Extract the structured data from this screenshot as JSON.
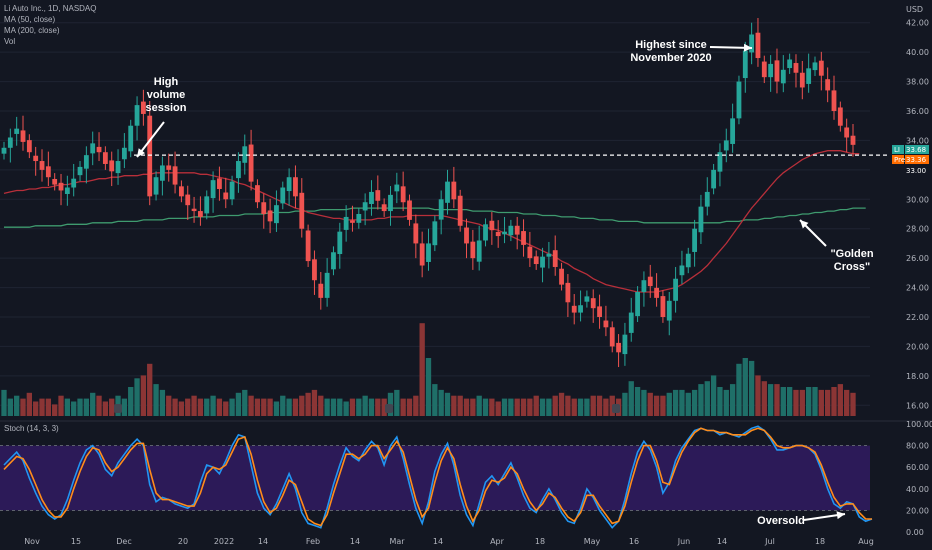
{
  "legend": {
    "symbol_line": "Li Auto Inc., 1D, NASDAQ",
    "ma50": "MA (50, close)",
    "ma200": "MA (200, close)",
    "vol": "Vol"
  },
  "oscillator_label": "Stoch (14, 3, 3)",
  "currency": "USD",
  "annotations": {
    "high_volume": "High volume session",
    "highest_since": "Highest since November 2020",
    "golden_cross": "\"Golden Cross\"",
    "oversold": "Oversold"
  },
  "price_tags": {
    "last_label": "LI",
    "last_value": "33.68",
    "pre_label": "Pre",
    "pre_value": "33.36",
    "line_value": "33.00"
  },
  "colors": {
    "bg": "#131722",
    "up": "#26a69a",
    "down": "#ef5350",
    "vol_up": "#1f6f68",
    "vol_down": "#8b3535",
    "ma50": "#b82f3a",
    "ma200": "#3f9b6f",
    "k_line": "#2196f3",
    "d_line": "#ff8c1a",
    "osc_band": "#311b62",
    "grid": "#1f2433"
  },
  "chart_data": {
    "type": "candlestick",
    "price_axis": {
      "ylim": [
        15,
        43
      ],
      "ticks": [
        16,
        18,
        20,
        22,
        24,
        26,
        28,
        30,
        32,
        34,
        36,
        38,
        40,
        42
      ]
    },
    "osc_axis": {
      "ylim": [
        0,
        100
      ],
      "ticks": [
        0,
        20,
        40,
        60,
        80,
        100
      ],
      "band": [
        20,
        80
      ]
    },
    "x_labels": [
      "Nov",
      "15",
      "Dec",
      "20",
      "2022",
      "14",
      "Feb",
      "14",
      "Mar",
      "14",
      "Apr",
      "18",
      "May",
      "16",
      "Jun",
      "14",
      "Jul",
      "18",
      "Aug"
    ],
    "horizontal_level": 33.0,
    "closes": [
      33.5,
      34.2,
      34.8,
      33.9,
      33.2,
      32.6,
      32.0,
      31.5,
      31.0,
      30.6,
      30.8,
      31.4,
      32.2,
      33.0,
      33.8,
      33.2,
      32.4,
      31.9,
      32.6,
      33.5,
      35.0,
      36.4,
      35.8,
      30.2,
      31.5,
      32.3,
      32.0,
      31.0,
      30.2,
      29.6,
      29.2,
      28.8,
      30.2,
      31.3,
      30.7,
      30.0,
      31.2,
      32.6,
      33.6,
      31.2,
      29.8,
      29.0,
      28.5,
      29.6,
      30.8,
      31.5,
      30.2,
      28.0,
      25.8,
      24.5,
      23.3,
      25.0,
      26.4,
      27.8,
      28.8,
      28.4,
      29.0,
      29.8,
      30.5,
      29.9,
      29.2,
      30.3,
      31.0,
      29.8,
      28.6,
      27.0,
      25.5,
      27.0,
      28.5,
      30.0,
      31.2,
      30.0,
      28.2,
      27.0,
      26.0,
      27.2,
      28.3,
      27.9,
      27.5,
      27.8,
      28.2,
      27.6,
      26.9,
      26.0,
      25.6,
      26.1,
      26.3,
      25.4,
      24.2,
      23.0,
      22.3,
      22.8,
      23.4,
      22.6,
      22.0,
      21.3,
      20.0,
      19.6,
      20.8,
      22.3,
      23.7,
      24.5,
      24.1,
      23.3,
      22.0,
      23.1,
      24.6,
      25.5,
      26.3,
      28.0,
      29.5,
      30.5,
      32.0,
      33.2,
      34.0,
      35.5,
      38.0,
      40.1,
      41.2,
      39.6,
      38.3,
      39.2,
      38.0,
      38.8,
      39.5,
      38.6,
      37.6,
      38.9,
      39.3,
      38.4,
      37.4,
      36.0,
      35.0,
      34.2,
      33.7
    ],
    "ma50": [
      30.4,
      30.5,
      30.6,
      30.6,
      30.7,
      30.7,
      30.8,
      30.8,
      30.9,
      31.0,
      31.0,
      31.1,
      31.2,
      31.2,
      31.3,
      31.4,
      31.4,
      31.5,
      31.5,
      31.6,
      31.6,
      31.6,
      31.7,
      31.7,
      31.8,
      31.8,
      31.8,
      31.8,
      31.8,
      31.8,
      31.8,
      31.7,
      31.7,
      31.6,
      31.5,
      31.4,
      31.3,
      31.1,
      31.0,
      30.8,
      30.6,
      30.4,
      30.2,
      30.0,
      29.8,
      29.6,
      29.4,
      29.3,
      29.1,
      29.0,
      28.9,
      28.8,
      28.7,
      28.7,
      28.6,
      28.6,
      28.6,
      28.6,
      28.6,
      28.7,
      28.7,
      28.8,
      28.8,
      28.8,
      28.9,
      28.9,
      28.9,
      28.9,
      28.9,
      28.9,
      28.8,
      28.7,
      28.6,
      28.5,
      28.4,
      28.3,
      28.1,
      28.0,
      27.9,
      27.7,
      27.5,
      27.3,
      27.1,
      26.9,
      26.7,
      26.5,
      26.3,
      26.1,
      25.8,
      25.6,
      25.3,
      25.1,
      24.9,
      24.6,
      24.4,
      24.2,
      24.1,
      24.0,
      23.9,
      23.8,
      23.7,
      23.7,
      23.7,
      23.7,
      23.8,
      23.9,
      24.0,
      24.2,
      24.5,
      24.8,
      25.1,
      25.5,
      26.0,
      26.5,
      27.0,
      27.6,
      28.2,
      28.8,
      29.4,
      29.9,
      30.4,
      30.9,
      31.4,
      31.8,
      32.1,
      32.4,
      32.7,
      32.9,
      33.1,
      33.2,
      33.3,
      33.3,
      33.3,
      33.2,
      33.1,
      33.1
    ],
    "ma200": [
      28.1,
      28.1,
      28.1,
      28.1,
      28.1,
      28.2,
      28.2,
      28.2,
      28.2,
      28.2,
      28.3,
      28.3,
      28.3,
      28.3,
      28.4,
      28.4,
      28.4,
      28.4,
      28.5,
      28.5,
      28.5,
      28.5,
      28.6,
      28.6,
      28.6,
      28.6,
      28.7,
      28.7,
      28.7,
      28.7,
      28.8,
      28.8,
      28.8,
      28.8,
      28.9,
      28.9,
      28.9,
      28.9,
      29.0,
      29.0,
      29.0,
      29.0,
      29.1,
      29.1,
      29.1,
      29.1,
      29.2,
      29.2,
      29.2,
      29.2,
      29.3,
      29.3,
      29.3,
      29.3,
      29.3,
      29.4,
      29.4,
      29.4,
      29.4,
      29.4,
      29.4,
      29.4,
      29.4,
      29.4,
      29.4,
      29.4,
      29.4,
      29.4,
      29.3,
      29.3,
      29.3,
      29.3,
      29.3,
      29.3,
      29.2,
      29.2,
      29.2,
      29.2,
      29.1,
      29.1,
      29.1,
      29.1,
      29.0,
      29.0,
      29.0,
      28.9,
      28.9,
      28.9,
      28.8,
      28.8,
      28.8,
      28.7,
      28.7,
      28.7,
      28.6,
      28.6,
      28.6,
      28.5,
      28.5,
      28.5,
      28.5,
      28.4,
      28.4,
      28.4,
      28.4,
      28.4,
      28.4,
      28.4,
      28.4,
      28.4,
      28.4,
      28.4,
      28.4,
      28.4,
      28.5,
      28.5,
      28.5,
      28.6,
      28.6,
      28.6,
      28.7,
      28.7,
      28.8,
      28.8,
      28.9,
      28.9,
      29.0,
      29.0,
      29.1,
      29.1,
      29.2,
      29.2,
      29.3,
      29.3,
      29.4,
      29.4,
      29.4
    ],
    "volume_norm": [
      0.45,
      0.3,
      0.35,
      0.3,
      0.4,
      0.25,
      0.3,
      0.3,
      0.2,
      0.35,
      0.3,
      0.25,
      0.3,
      0.3,
      0.4,
      0.35,
      0.25,
      0.3,
      0.35,
      0.3,
      0.5,
      0.65,
      0.7,
      0.9,
      0.55,
      0.45,
      0.35,
      0.3,
      0.25,
      0.3,
      0.35,
      0.3,
      0.3,
      0.35,
      0.3,
      0.25,
      0.3,
      0.4,
      0.45,
      0.35,
      0.3,
      0.3,
      0.3,
      0.25,
      0.35,
      0.3,
      0.3,
      0.35,
      0.4,
      0.45,
      0.35,
      0.3,
      0.3,
      0.3,
      0.25,
      0.3,
      0.3,
      0.35,
      0.3,
      0.3,
      0.3,
      0.4,
      0.45,
      0.3,
      0.3,
      0.35,
      1.6,
      1.0,
      0.55,
      0.45,
      0.4,
      0.35,
      0.35,
      0.3,
      0.3,
      0.35,
      0.3,
      0.3,
      0.25,
      0.3,
      0.3,
      0.3,
      0.3,
      0.3,
      0.35,
      0.3,
      0.3,
      0.35,
      0.4,
      0.35,
      0.3,
      0.3,
      0.3,
      0.35,
      0.35,
      0.3,
      0.35,
      0.3,
      0.4,
      0.6,
      0.5,
      0.45,
      0.4,
      0.35,
      0.35,
      0.4,
      0.45,
      0.45,
      0.4,
      0.45,
      0.55,
      0.6,
      0.7,
      0.5,
      0.45,
      0.55,
      0.9,
      1.0,
      0.95,
      0.7,
      0.6,
      0.55,
      0.55,
      0.5,
      0.5,
      0.45,
      0.45,
      0.5,
      0.5,
      0.45,
      0.45,
      0.5,
      0.55,
      0.45,
      0.4
    ],
    "stoch_k": [
      62,
      68,
      74,
      66,
      50,
      36,
      24,
      16,
      12,
      16,
      30,
      48,
      64,
      76,
      80,
      72,
      58,
      52,
      64,
      72,
      80,
      86,
      80,
      44,
      28,
      32,
      30,
      26,
      24,
      22,
      26,
      46,
      62,
      60,
      54,
      66,
      80,
      90,
      88,
      62,
      36,
      22,
      16,
      26,
      40,
      54,
      40,
      18,
      8,
      6,
      4,
      22,
      44,
      62,
      78,
      70,
      66,
      76,
      84,
      78,
      62,
      80,
      88,
      68,
      44,
      22,
      8,
      28,
      56,
      72,
      82,
      62,
      34,
      16,
      6,
      26,
      46,
      52,
      44,
      54,
      64,
      50,
      34,
      22,
      18,
      30,
      40,
      30,
      18,
      10,
      8,
      22,
      40,
      32,
      20,
      12,
      4,
      10,
      30,
      54,
      74,
      84,
      76,
      60,
      36,
      46,
      66,
      78,
      86,
      94,
      96,
      94,
      94,
      90,
      92,
      90,
      88,
      92,
      96,
      98,
      94,
      86,
      76,
      76,
      78,
      80,
      80,
      78,
      72,
      58,
      40,
      26,
      22,
      28,
      26,
      14,
      10,
      12
    ],
    "stoch_d": [
      58,
      64,
      70,
      68,
      58,
      44,
      30,
      20,
      14,
      14,
      22,
      40,
      56,
      70,
      78,
      76,
      64,
      56,
      60,
      68,
      76,
      82,
      82,
      58,
      36,
      30,
      30,
      28,
      26,
      24,
      24,
      36,
      54,
      60,
      58,
      62,
      74,
      86,
      88,
      72,
      48,
      28,
      18,
      22,
      34,
      48,
      44,
      28,
      12,
      8,
      6,
      16,
      36,
      54,
      72,
      72,
      68,
      72,
      80,
      80,
      68,
      76,
      84,
      74,
      52,
      30,
      14,
      22,
      46,
      66,
      78,
      68,
      44,
      24,
      10,
      20,
      38,
      48,
      46,
      50,
      60,
      54,
      40,
      28,
      20,
      26,
      36,
      32,
      22,
      14,
      10,
      18,
      34,
      34,
      24,
      16,
      8,
      10,
      24,
      46,
      66,
      80,
      80,
      66,
      46,
      44,
      60,
      74,
      84,
      92,
      96,
      94,
      94,
      92,
      92,
      90,
      90,
      90,
      94,
      96,
      94,
      88,
      80,
      78,
      78,
      80,
      80,
      78,
      74,
      62,
      46,
      32,
      24,
      26,
      26,
      18,
      12,
      12
    ]
  }
}
